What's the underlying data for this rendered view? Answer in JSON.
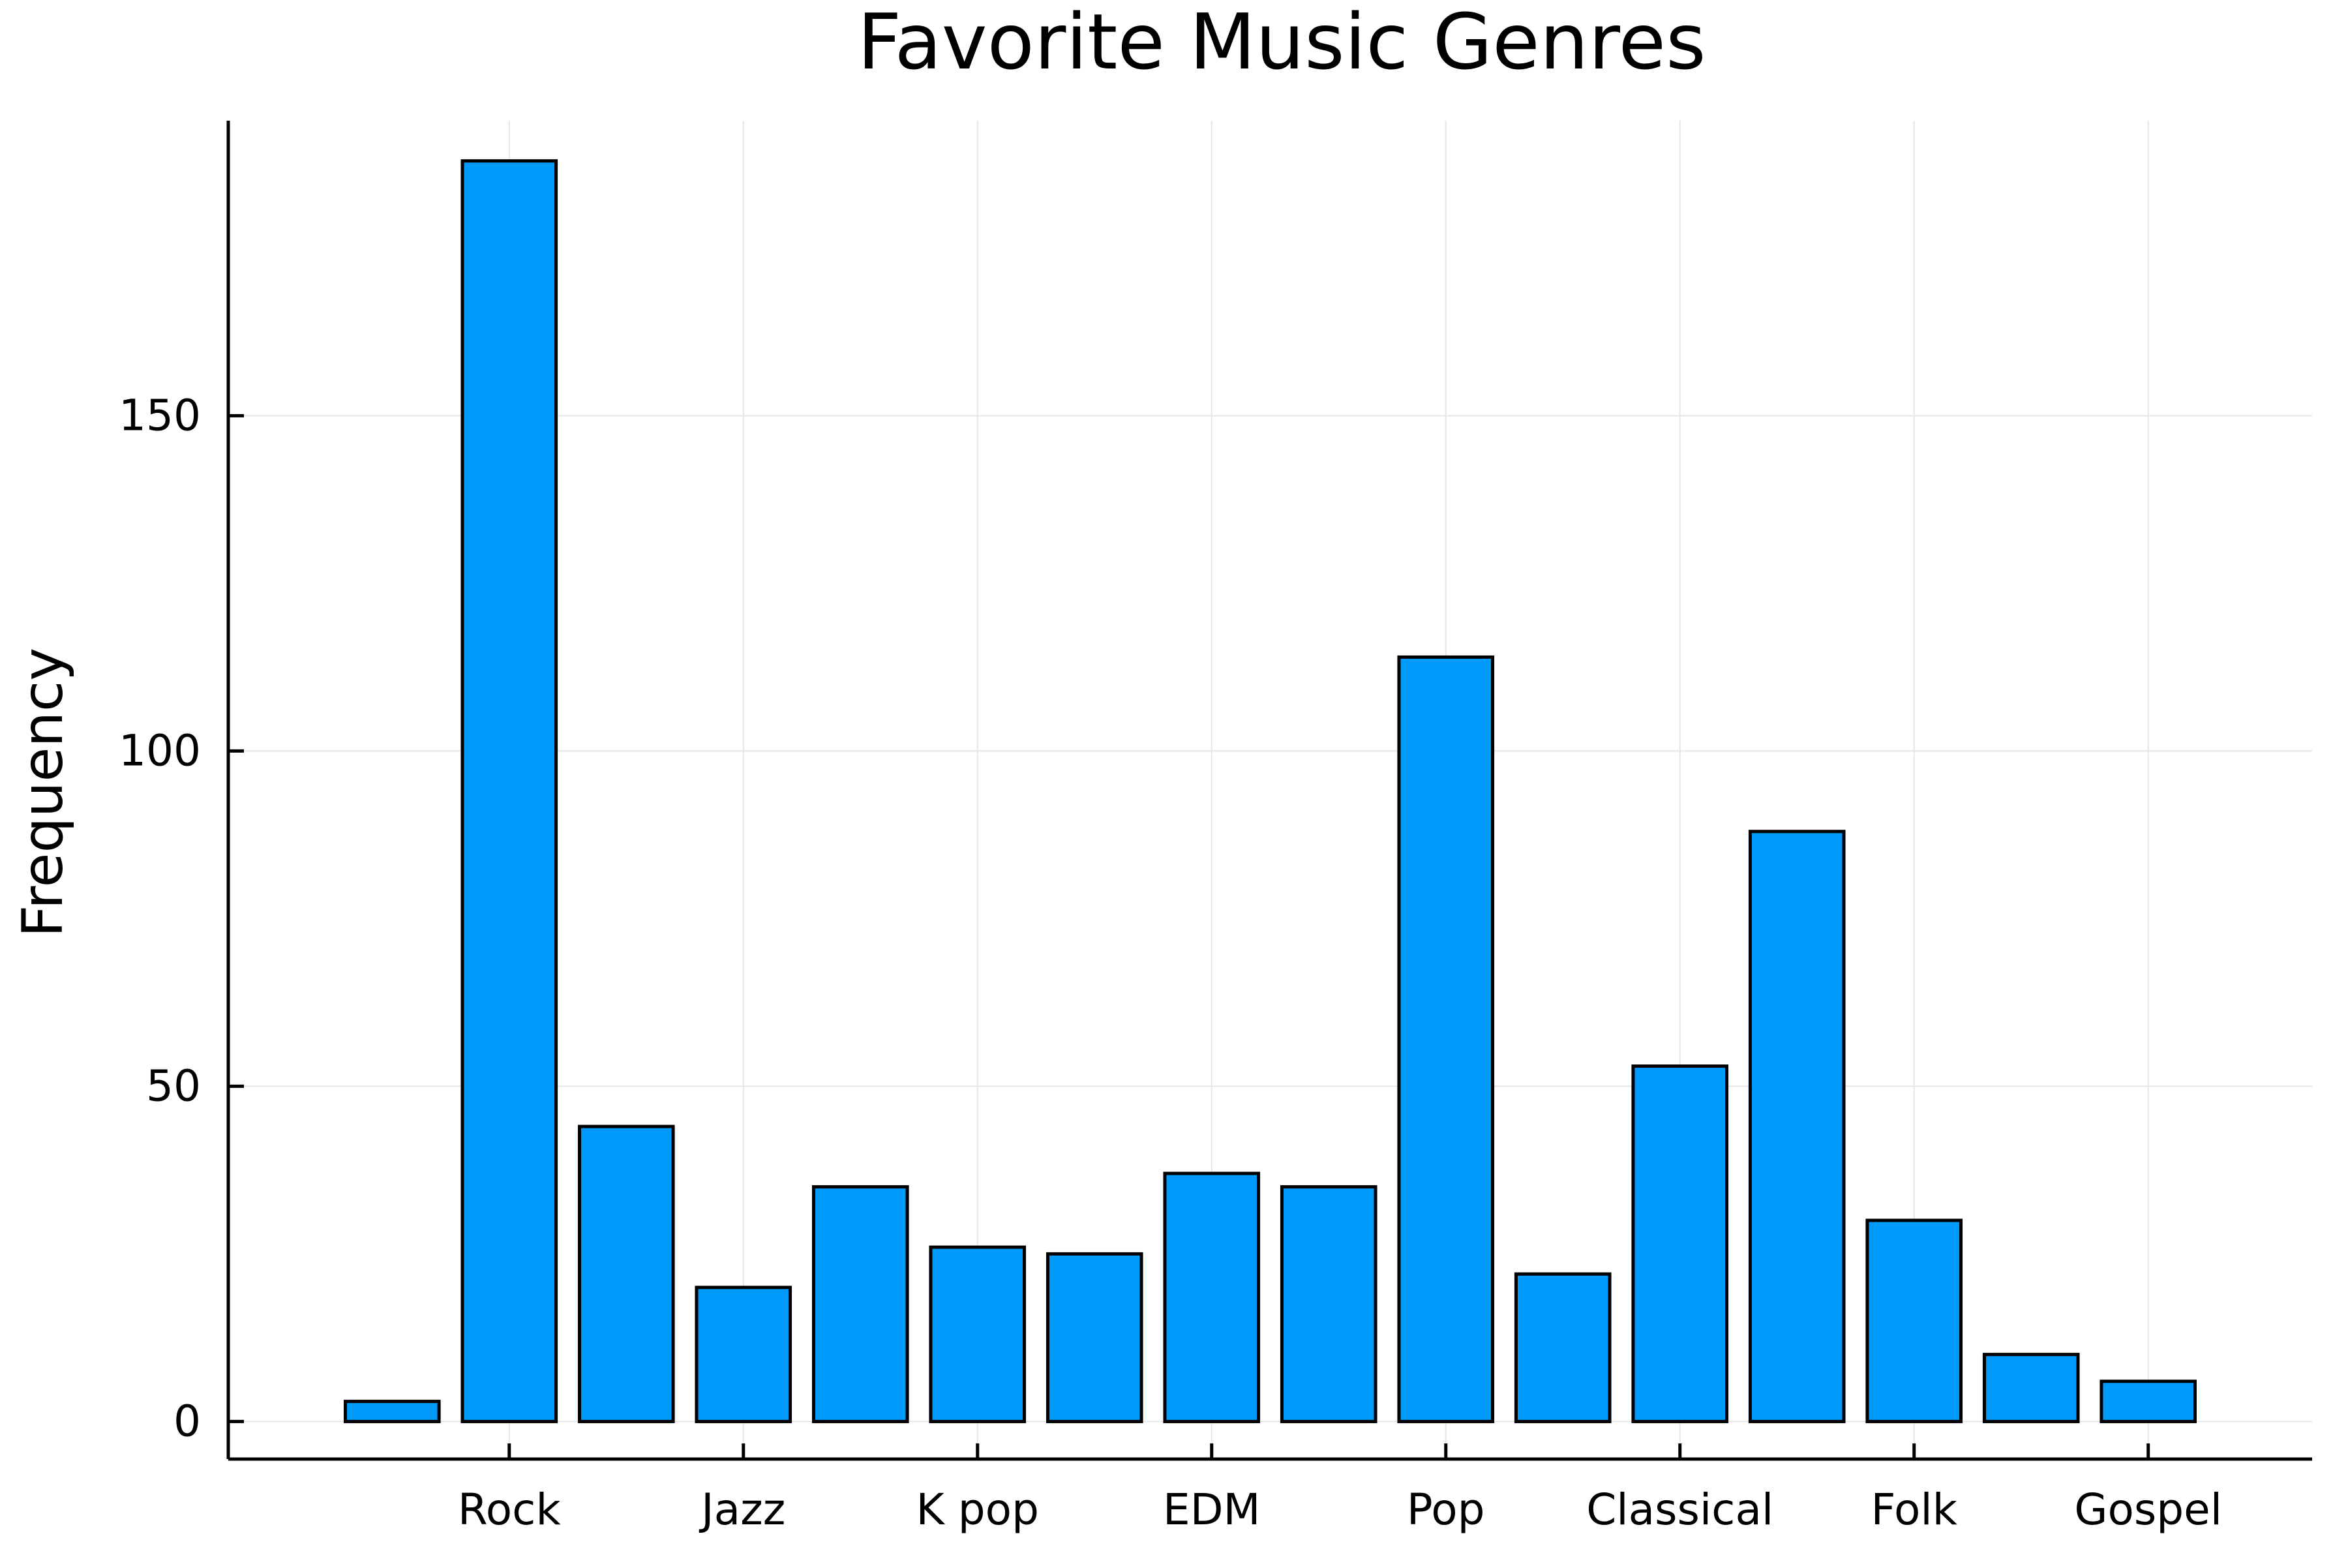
{
  "chart_data": {
    "type": "bar",
    "title": "Favorite Music Genres",
    "xlabel": "",
    "ylabel": "Frequency",
    "x_tick_labels": [
      "Rock",
      "Jazz",
      "K pop",
      "EDM",
      "Pop",
      "Classical",
      "Folk",
      "Gospel"
    ],
    "x_tick_positions": [
      2,
      4,
      6,
      8,
      10,
      12,
      14,
      16
    ],
    "x": [
      1,
      2,
      3,
      4,
      5,
      6,
      7,
      8,
      9,
      10,
      11,
      12,
      13,
      14,
      15,
      16
    ],
    "values": [
      3,
      188,
      44,
      20,
      35,
      26,
      25,
      37,
      35,
      114,
      22,
      53,
      88,
      30,
      10,
      6
    ],
    "yticks": [
      0,
      50,
      100,
      150
    ],
    "ylim": [
      -5.6,
      194
    ],
    "xlim": [
      -0.4,
      17.4
    ],
    "grid": true,
    "legend": "none",
    "bar_color": "#009AFA",
    "bar_edge_color": "#000000",
    "grid_color": "#E6E6E6"
  }
}
